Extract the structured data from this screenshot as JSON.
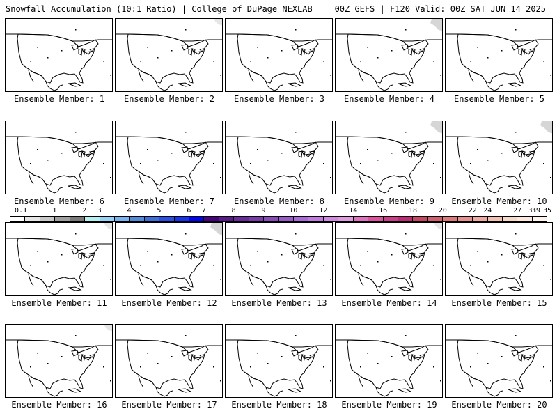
{
  "header": {
    "left": "Snowfall Accumulation (10:1 Ratio) | College of DuPage NEXLAB",
    "right": "00Z GEFS | F120 Valid: 00Z SAT JUN 14 2025"
  },
  "members": [
    {
      "label": "Ensemble Member: 1",
      "snow": 0
    },
    {
      "label": "Ensemble Member: 2",
      "snow": 1
    },
    {
      "label": "Ensemble Member: 3",
      "snow": 0
    },
    {
      "label": "Ensemble Member: 4",
      "snow": 2
    },
    {
      "label": "Ensemble Member: 5",
      "snow": 0
    },
    {
      "label": "Ensemble Member: 6",
      "snow": 0
    },
    {
      "label": "Ensemble Member: 7",
      "snow": 0
    },
    {
      "label": "Ensemble Member: 8",
      "snow": 0
    },
    {
      "label": "Ensemble Member: 9",
      "snow": 2
    },
    {
      "label": "Ensemble Member: 10",
      "snow": 2
    },
    {
      "label": "Ensemble Member: 11",
      "snow": 1
    },
    {
      "label": "Ensemble Member: 12",
      "snow": 2
    },
    {
      "label": "Ensemble Member: 13",
      "snow": 0
    },
    {
      "label": "Ensemble Member: 14",
      "snow": 1
    },
    {
      "label": "Ensemble Member: 15",
      "snow": 0
    },
    {
      "label": "Ensemble Member: 16",
      "snow": 1
    },
    {
      "label": "Ensemble Member: 17",
      "snow": 0
    },
    {
      "label": "Ensemble Member: 18",
      "snow": 0
    },
    {
      "label": "Ensemble Member: 19",
      "snow": 0
    },
    {
      "label": "Ensemble Member: 20",
      "snow": 0
    }
  ],
  "colorbar": {
    "labels": [
      "0.1",
      "1",
      "2",
      "3",
      "4",
      "5",
      "6",
      "7",
      "8",
      "9",
      "10",
      "12",
      "14",
      "16",
      "18",
      "20",
      "22",
      "24",
      "27",
      "31",
      "35",
      "39"
    ],
    "colors": [
      "#ffffff",
      "#e6e6e6",
      "#c8c8c8",
      "#a0a0a0",
      "#7a7a7a",
      "#b4f0f0",
      "#96d2fa",
      "#78b4f0",
      "#508cdc",
      "#3c6edc",
      "#2850e6",
      "#1432f0",
      "#0000ff",
      "#4b0082",
      "#5a1a8c",
      "#6a2a9c",
      "#7a3aac",
      "#8a4abc",
      "#9a5acc",
      "#aa6adc",
      "#c07ae0",
      "#d08ae0",
      "#e09ae0",
      "#e070c0",
      "#e050a0",
      "#d03c8c",
      "#c02878",
      "#c84664",
      "#d06070",
      "#e07a7a",
      "#e89090",
      "#f0a8a0",
      "#f4c0b0",
      "#f8d8c8",
      "#fce8dc",
      "#fff4ec"
    ]
  }
}
